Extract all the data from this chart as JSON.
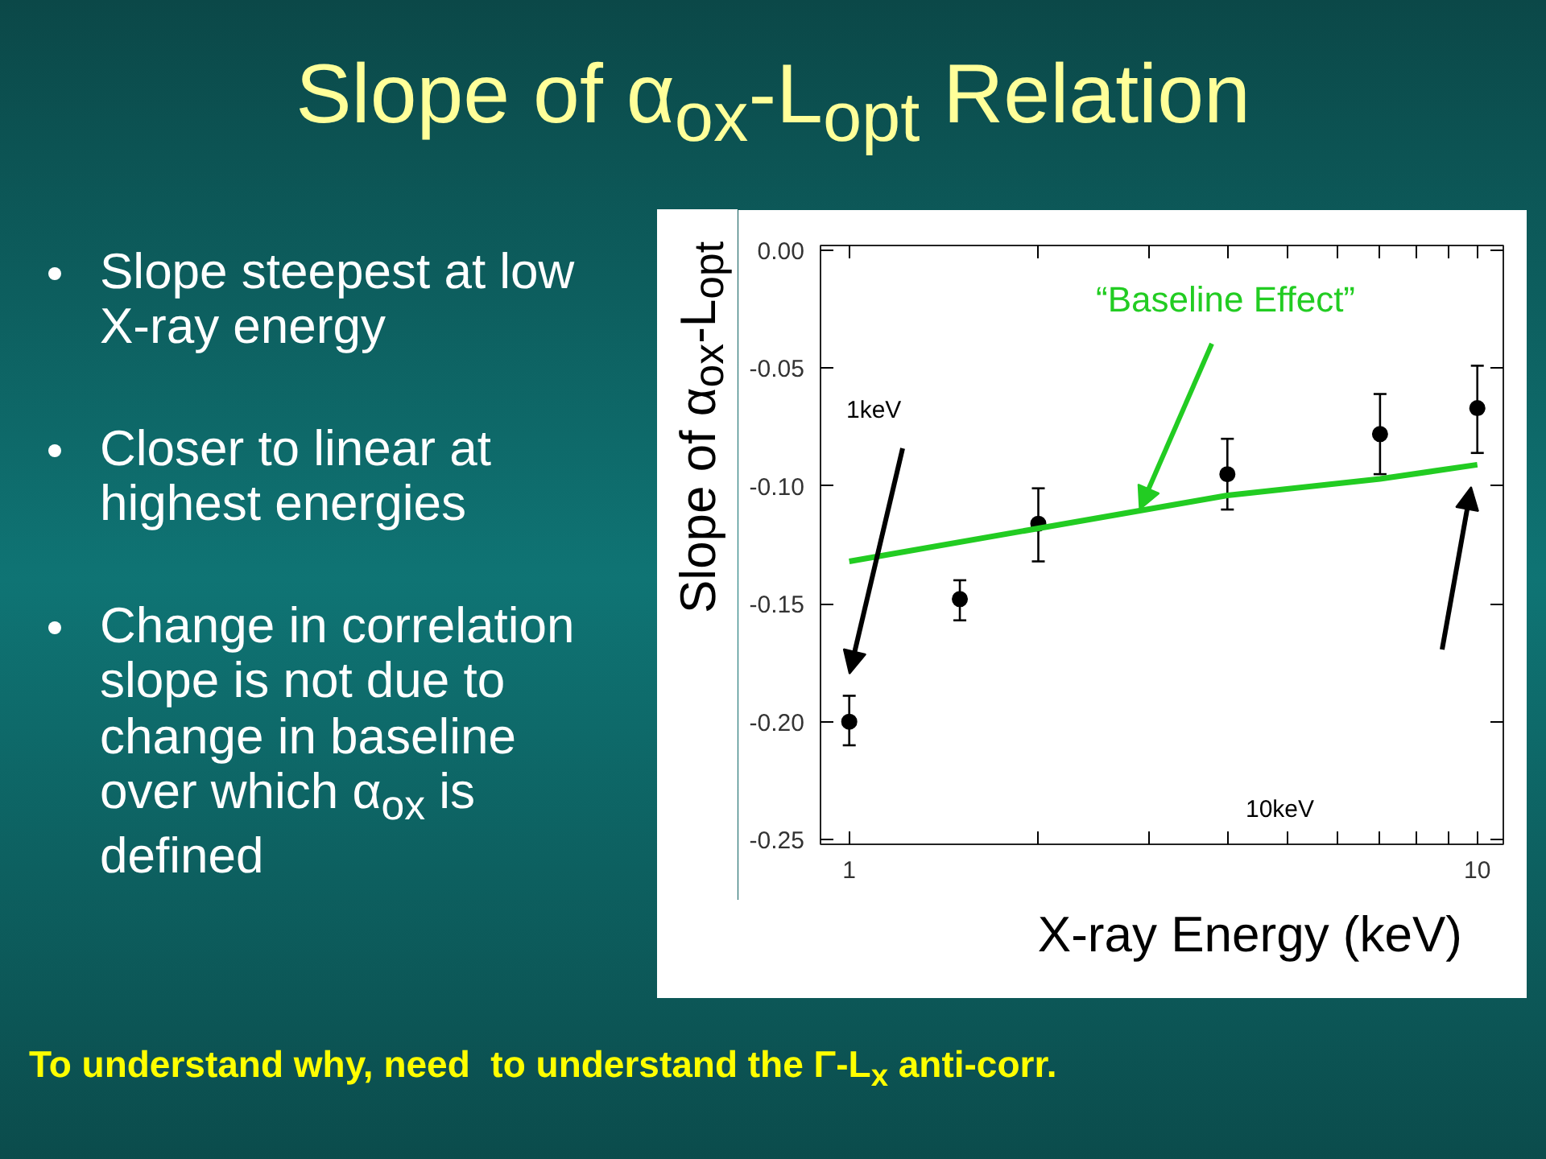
{
  "chart_data": {
    "type": "scatter",
    "title": "Slope of α$_{ox}$-L$_{opt}$ Relation",
    "xlabel": "X-ray Energy (keV)",
    "ylabel": "Slope of α$_{ox}$-L$_{opt}$",
    "log": "x",
    "x": [
      1,
      1.5,
      2,
      4,
      7,
      10
    ],
    "series": [
      {
        "color": "#000000",
        "marker": "circle",
        "values": [
          -0.2,
          -0.148,
          -0.116,
          -0.095,
          -0.078,
          -0.067
        ],
        "errors": [
          [
            -0.21,
            -0.189
          ],
          [
            -0.157,
            -0.14
          ],
          [
            -0.132,
            -0.101
          ],
          [
            -0.11,
            -0.08
          ],
          [
            -0.095,
            -0.061
          ],
          [
            -0.086,
            -0.049
          ]
        ]
      },
      {
        "type": "line",
        "color": "#22cc22",
        "x": [
          1,
          2,
          4,
          7,
          10
        ],
        "values": [
          -0.132,
          -0.118,
          -0.104,
          -0.097,
          -0.091
        ]
      }
    ],
    "xlim": [
      0.9,
      11
    ],
    "ylim": [
      -0.252,
      0.002
    ],
    "xticks": [
      1,
      {
        "value": 2,
        "label": null
      },
      {
        "value": 3,
        "label": null
      },
      {
        "value": 4,
        "label": null
      },
      {
        "value": 5,
        "label": null
      },
      {
        "value": 6,
        "label": null
      },
      {
        "value": 7,
        "label": null
      },
      {
        "value": 8,
        "label": null
      },
      {
        "value": 9,
        "label": null
      },
      10
    ],
    "yticks": [
      {
        "value": 0,
        "label": "0.00"
      },
      {
        "value": -0.05,
        "label": "-0.05"
      },
      {
        "value": -0.1,
        "label": "-0.10"
      },
      {
        "value": -0.15,
        "label": "-0.15"
      },
      {
        "value": -0.2,
        "label": "-0.20"
      },
      {
        "value": -0.25,
        "label": "-0.25"
      }
    ],
    "grid": false,
    "annotations": [
      "Slope steepest at low X-ray energy",
      "Closer to linear at highest energies",
      "Change in correlation slope is not due to change in baseline over which α$_{ox}$ is defined",
      {
        "text": "“Baseline Effect”",
        "x": 2.9,
        "y": -0.11
      },
      "1keV",
      "10keV",
      "To understand why, need  to understand the Γ-L$_{x}$ anti-corr."
    ]
  }
}
